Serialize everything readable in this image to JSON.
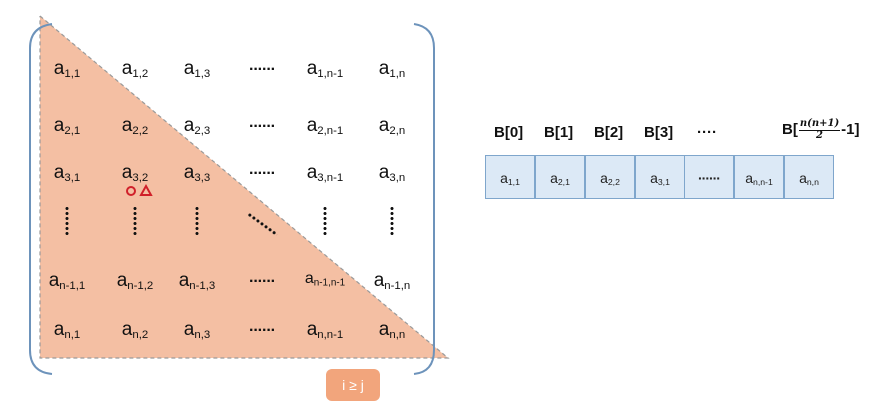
{
  "matrix": {
    "rows": [
      [
        {
          "b": "a",
          "s": "1,1"
        },
        {
          "b": "a",
          "s": "1,2"
        },
        {
          "b": "a",
          "s": "1,3"
        },
        {
          "d": "h"
        },
        {
          "b": "a",
          "s": "1,n-1"
        },
        {
          "b": "a",
          "s": "1,n"
        }
      ],
      [
        {
          "b": "a",
          "s": "2,1"
        },
        {
          "b": "a",
          "s": "2,2"
        },
        {
          "b": "a",
          "s": "2,3"
        },
        {
          "d": "h"
        },
        {
          "b": "a",
          "s": "2,n-1"
        },
        {
          "b": "a",
          "s": "2,n"
        }
      ],
      [
        {
          "b": "a",
          "s": "3,1"
        },
        {
          "b": "a",
          "s": "3,2"
        },
        {
          "b": "a",
          "s": "3,3"
        },
        {
          "d": "h"
        },
        {
          "b": "a",
          "s": "3,n-1"
        },
        {
          "b": "a",
          "s": "3,n"
        }
      ],
      [
        {
          "d": "v"
        },
        {
          "d": "v"
        },
        {
          "d": "v"
        },
        {
          "d": "d"
        },
        {
          "d": "v"
        },
        {
          "d": "v"
        }
      ],
      [
        {
          "b": "a",
          "s": "n-1,1"
        },
        {
          "b": "a",
          "s": "n-1,2"
        },
        {
          "b": "a",
          "s": "n-1,3"
        },
        {
          "d": "h"
        },
        {
          "b": "a",
          "s": "n-1,n-1",
          "small": true
        },
        {
          "b": "a",
          "s": "n-1,n"
        }
      ],
      [
        {
          "b": "a",
          "s": "n,1"
        },
        {
          "b": "a",
          "s": "n,2"
        },
        {
          "b": "a",
          "s": "n,3"
        },
        {
          "d": "h"
        },
        {
          "b": "a",
          "s": "n,n-1"
        },
        {
          "b": "a",
          "s": "n,n"
        }
      ]
    ],
    "hdots_text": "······",
    "region_label": "i ≥ j",
    "colors": {
      "lower": "#f4bfa3",
      "bracket": "#6d93bb",
      "dash": "#9a9a9a",
      "badge": "#f2a57c",
      "cursor": "#d0202a"
    }
  },
  "array": {
    "headers": [
      "B[0]",
      "B[1]",
      "B[2]",
      "B[3]",
      "····"
    ],
    "last_header": {
      "prefix": "B[",
      "frac_num": "n(n+1)",
      "frac_den": "2",
      "suffix": "-1]"
    },
    "cells": [
      {
        "b": "a",
        "s": "1,1"
      },
      {
        "b": "a",
        "s": "2,1"
      },
      {
        "b": "a",
        "s": "2,2"
      },
      {
        "b": "a",
        "s": "3,1"
      },
      {
        "t": "······"
      },
      {
        "b": "a",
        "s": "n,n-1"
      },
      {
        "b": "a",
        "s": "n,n"
      }
    ],
    "colors": {
      "fill": "#dce9f6",
      "border": "#7fa6cc"
    }
  }
}
